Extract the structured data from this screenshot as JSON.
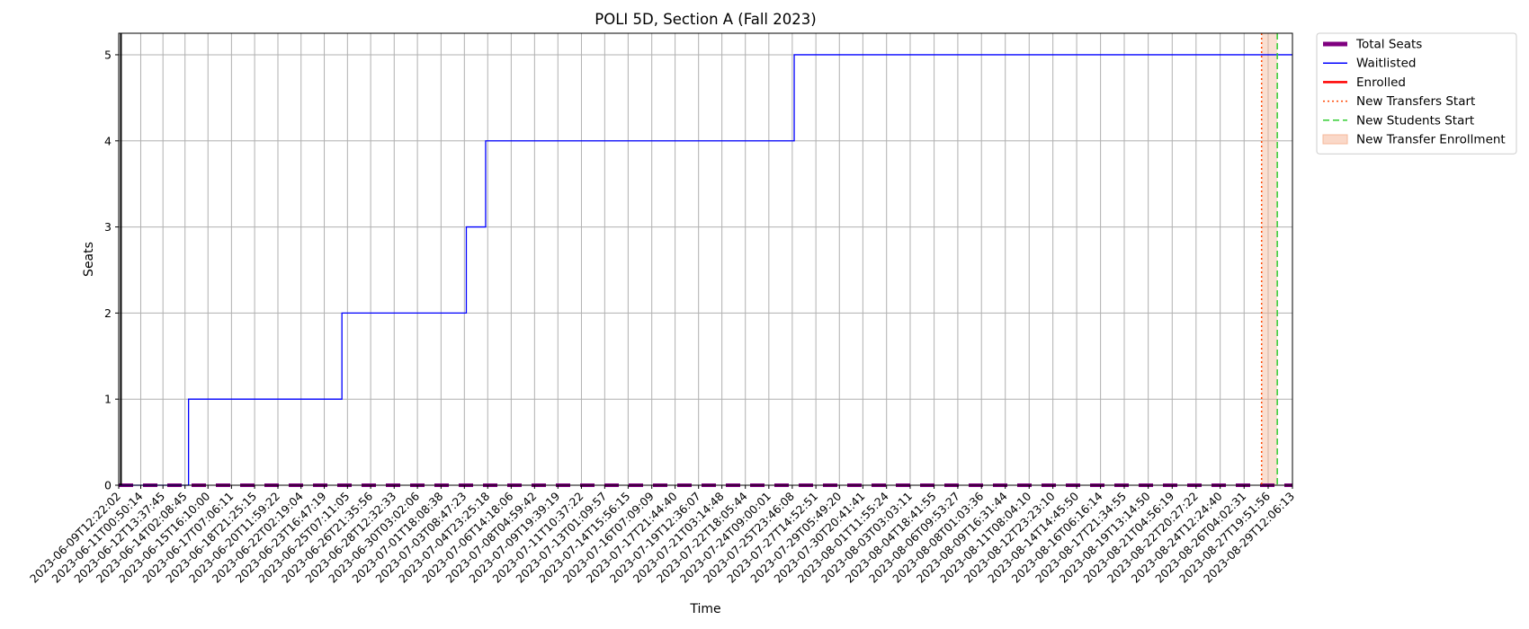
{
  "chart_data": {
    "type": "line",
    "title": "POLI 5D, Section A (Fall 2023)",
    "xlabel": "Time",
    "ylabel": "Seats",
    "ylim": [
      0,
      5.25
    ],
    "y_ticks": [
      "0",
      "1",
      "2",
      "3",
      "4",
      "5"
    ],
    "grid": true,
    "legend_placement": "outside-top-right",
    "x_tick_labels": [
      "2023-06-09T12:22:02",
      "2023-06-11T00:50:14",
      "2023-06-12T13:37:45",
      "2023-06-14T02:08:45",
      "2023-06-15T16:10:00",
      "2023-06-17T07:06:11",
      "2023-06-18T21:25:15",
      "2023-06-20T11:59:22",
      "2023-06-22T02:19:04",
      "2023-06-23T16:47:19",
      "2023-06-25T07:11:05",
      "2023-06-26T21:35:56",
      "2023-06-28T12:32:33",
      "2023-06-30T03:02:06",
      "2023-07-01T18:08:38",
      "2023-07-03T08:47:23",
      "2023-07-04T23:25:18",
      "2023-07-06T14:18:06",
      "2023-07-08T04:59:42",
      "2023-07-09T19:39:19",
      "2023-07-11T10:37:22",
      "2023-07-13T01:09:57",
      "2023-07-14T15:56:15",
      "2023-07-16T07:09:09",
      "2023-07-17T21:44:40",
      "2023-07-19T12:36:07",
      "2023-07-21T03:14:48",
      "2023-07-22T18:05:44",
      "2023-07-24T09:00:01",
      "2023-07-25T23:46:08",
      "2023-07-27T14:52:51",
      "2023-07-29T05:49:20",
      "2023-07-30T20:41:41",
      "2023-08-01T11:55:24",
      "2023-08-03T03:03:11",
      "2023-08-04T18:41:55",
      "2023-08-06T09:53:27",
      "2023-08-08T01:03:36",
      "2023-08-09T16:31:44",
      "2023-08-11T08:04:10",
      "2023-08-12T23:23:10",
      "2023-08-14T14:45:50",
      "2023-08-16T06:16:14",
      "2023-08-17T21:34:55",
      "2023-08-19T13:14:50",
      "2023-08-21T04:56:19",
      "2023-08-22T20:27:22",
      "2023-08-24T12:24:40",
      "2023-08-26T04:02:31",
      "2023-08-27T19:51:56",
      "2023-08-29T12:06:13"
    ],
    "x_range": [
      "2023-06-09T12:22:02",
      "2023-08-29T12:06:13"
    ],
    "series": [
      {
        "name": "Total Seats",
        "color": "#800080",
        "style": "solid-thick",
        "x": [
          "2023-06-09T12:22:02",
          "2023-08-29T12:06:13"
        ],
        "y": [
          0,
          0
        ]
      },
      {
        "name": "Waitlisted",
        "color": "#0000ff",
        "style": "step",
        "x": [
          "2023-06-09T12:22:02",
          "2023-06-14T08:00:00",
          "2023-06-24T22:00:00",
          "2023-07-03T12:00:00",
          "2023-07-04T20:00:00",
          "2023-07-26T03:00:00",
          "2023-08-29T12:06:13"
        ],
        "y": [
          0,
          1,
          2,
          3,
          4,
          5,
          5
        ]
      },
      {
        "name": "Enrolled",
        "color": "#ff0000",
        "style": "solid",
        "x": [
          "2023-06-09T12:22:02",
          "2023-08-29T12:06:13"
        ],
        "y": [
          0,
          0
        ]
      }
    ],
    "reference_lines": [
      {
        "name": "New Transfers Start",
        "color": "#ff4500",
        "style": "dotted",
        "x": "2023-08-27T09:00:00"
      },
      {
        "name": "New Students Start",
        "color": "#32cd32",
        "style": "dashed",
        "x": "2023-08-28T11:00:00"
      }
    ],
    "shaded_regions": [
      {
        "name": "New Transfer Enrollment",
        "color": "#f5b89a",
        "x_start": "2023-08-27T09:00:00",
        "x_end": "2023-08-28T11:00:00"
      }
    ],
    "vertical_marker": {
      "color": "#000000",
      "x": "2023-06-09T16:00:00"
    },
    "legend": [
      {
        "label": "Total Seats",
        "color": "#800080",
        "style": "thick"
      },
      {
        "label": "Waitlisted",
        "color": "#0000ff",
        "style": "solid"
      },
      {
        "label": "Enrolled",
        "color": "#ff0000",
        "style": "solid"
      },
      {
        "label": "New Transfers Start",
        "color": "#ff4500",
        "style": "dotted"
      },
      {
        "label": "New Students Start",
        "color": "#32cd32",
        "style": "dashed"
      },
      {
        "label": "New Transfer Enrollment",
        "color": "#f5b89a",
        "style": "patch"
      }
    ]
  }
}
